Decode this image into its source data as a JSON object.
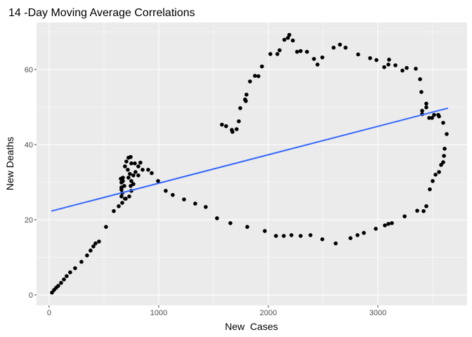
{
  "chart_data": {
    "type": "scatter",
    "title": "14 -Day Moving Average Correlations",
    "xlabel": "New  Cases",
    "ylabel": "New Deaths",
    "xlim": [
      -115,
      3814
    ],
    "ylim": [
      -2.8,
      72.5
    ],
    "x_ticks": [
      0,
      1000,
      2000,
      3000
    ],
    "y_ticks": [
      0,
      20,
      40,
      60
    ],
    "x_tick_labels": [
      "0",
      "1000",
      "2000",
      "3000"
    ],
    "y_tick_labels": [
      "0",
      "20",
      "40",
      "60"
    ],
    "grid": true,
    "point_color": "#000000",
    "panel_background": "#ebebeb",
    "trend_line": {
      "method": "linear",
      "color": "#3366ff",
      "x": [
        20,
        3640
      ],
      "y": [
        22.3,
        49.7
      ]
    },
    "points": [
      [
        26,
        0.6
      ],
      [
        45,
        1.3
      ],
      [
        64,
        1.9
      ],
      [
        83,
        2.4
      ],
      [
        109,
        3.2
      ],
      [
        135,
        4.1
      ],
      [
        160,
        5.0
      ],
      [
        192,
        6.0
      ],
      [
        237,
        7.1
      ],
      [
        295,
        8.8
      ],
      [
        346,
        10.5
      ],
      [
        378,
        11.8
      ],
      [
        404,
        12.9
      ],
      [
        423,
        13.7
      ],
      [
        455,
        14.2
      ],
      [
        519,
        18.1
      ],
      [
        590,
        22.3
      ],
      [
        635,
        23.6
      ],
      [
        667,
        24.5
      ],
      [
        699,
        25.6
      ],
      [
        731,
        26.2
      ],
      [
        654,
        30.9
      ],
      [
        660,
        29.9
      ],
      [
        660,
        28.6
      ],
      [
        660,
        26.2
      ],
      [
        667,
        27.1
      ],
      [
        673,
        31.2
      ],
      [
        686,
        29.0
      ],
      [
        692,
        25.6
      ],
      [
        705,
        35.5
      ],
      [
        718,
        33.3
      ],
      [
        724,
        36.5
      ],
      [
        744,
        36.7
      ],
      [
        750,
        35.0
      ],
      [
        737,
        32.2
      ],
      [
        724,
        31.2
      ],
      [
        750,
        30.3
      ],
      [
        769,
        31.8
      ],
      [
        782,
        35.0
      ],
      [
        788,
        32.7
      ],
      [
        814,
        34.2
      ],
      [
        833,
        35.2
      ],
      [
        769,
        29.5
      ],
      [
        744,
        29.0
      ],
      [
        750,
        27.7
      ],
      [
        853,
        33.3
      ],
      [
        904,
        33.3
      ],
      [
        936,
        32.4
      ],
      [
        994,
        30.3
      ],
      [
        1064,
        27.7
      ],
      [
        1128,
        26.6
      ],
      [
        673,
        30.3
      ],
      [
        660,
        28.0
      ],
      [
        692,
        34.2
      ],
      [
        814,
        31.8
      ],
      [
        1231,
        25.4
      ],
      [
        1333,
        24.3
      ],
      [
        1429,
        23.4
      ],
      [
        1532,
        20.4
      ],
      [
        1654,
        19.1
      ],
      [
        1808,
        18.1
      ],
      [
        1968,
        17.0
      ],
      [
        2070,
        15.7
      ],
      [
        2141,
        15.7
      ],
      [
        2211,
        15.9
      ],
      [
        2295,
        15.7
      ],
      [
        2385,
        15.9
      ],
      [
        2493,
        14.8
      ],
      [
        2615,
        13.7
      ],
      [
        2750,
        15.1
      ],
      [
        2814,
        15.9
      ],
      [
        2872,
        16.5
      ],
      [
        2981,
        17.6
      ],
      [
        3064,
        18.5
      ],
      [
        3096,
        18.9
      ],
      [
        3128,
        19.1
      ],
      [
        3244,
        20.9
      ],
      [
        3359,
        22.4
      ],
      [
        3417,
        22.3
      ],
      [
        3442,
        23.6
      ],
      [
        3474,
        28.1
      ],
      [
        3500,
        30.3
      ],
      [
        3526,
        32.0
      ],
      [
        3558,
        32.7
      ],
      [
        3577,
        34.6
      ],
      [
        3596,
        35.3
      ],
      [
        3603,
        37.0
      ],
      [
        3609,
        38.9
      ],
      [
        3628,
        42.8
      ],
      [
        1577,
        45.3
      ],
      [
        1615,
        44.9
      ],
      [
        1667,
        43.9
      ],
      [
        1673,
        43.4
      ],
      [
        1711,
        44.1
      ],
      [
        1731,
        46.2
      ],
      [
        1744,
        49.7
      ],
      [
        1788,
        52.0
      ],
      [
        1795,
        51.6
      ],
      [
        1801,
        53.3
      ],
      [
        1833,
        56.8
      ],
      [
        1878,
        58.3
      ],
      [
        1910,
        58.2
      ],
      [
        1942,
        60.8
      ],
      [
        2019,
        64.1
      ],
      [
        2083,
        64.1
      ],
      [
        2103,
        65.1
      ],
      [
        2147,
        67.9
      ],
      [
        2179,
        68.4
      ],
      [
        2192,
        69.2
      ],
      [
        2224,
        67.7
      ],
      [
        2263,
        64.7
      ],
      [
        2295,
        64.9
      ],
      [
        2353,
        64.7
      ],
      [
        2417,
        62.8
      ],
      [
        2449,
        61.3
      ],
      [
        2493,
        63.2
      ],
      [
        2596,
        65.8
      ],
      [
        2654,
        66.6
      ],
      [
        2705,
        65.8
      ],
      [
        2820,
        64.0
      ],
      [
        2929,
        63.0
      ],
      [
        2987,
        62.5
      ],
      [
        3058,
        60.6
      ],
      [
        3096,
        61.3
      ],
      [
        3102,
        62.6
      ],
      [
        3160,
        61.1
      ],
      [
        3224,
        59.7
      ],
      [
        3263,
        60.4
      ],
      [
        3346,
        60.2
      ],
      [
        3385,
        57.4
      ],
      [
        3397,
        54.0
      ],
      [
        3442,
        50.9
      ],
      [
        3442,
        49.9
      ],
      [
        3404,
        49.0
      ],
      [
        3404,
        48.1
      ],
      [
        3468,
        47.1
      ],
      [
        3494,
        47.1
      ],
      [
        3513,
        47.9
      ],
      [
        3551,
        47.9
      ],
      [
        3558,
        47.5
      ],
      [
        3596,
        45.8
      ]
    ]
  }
}
